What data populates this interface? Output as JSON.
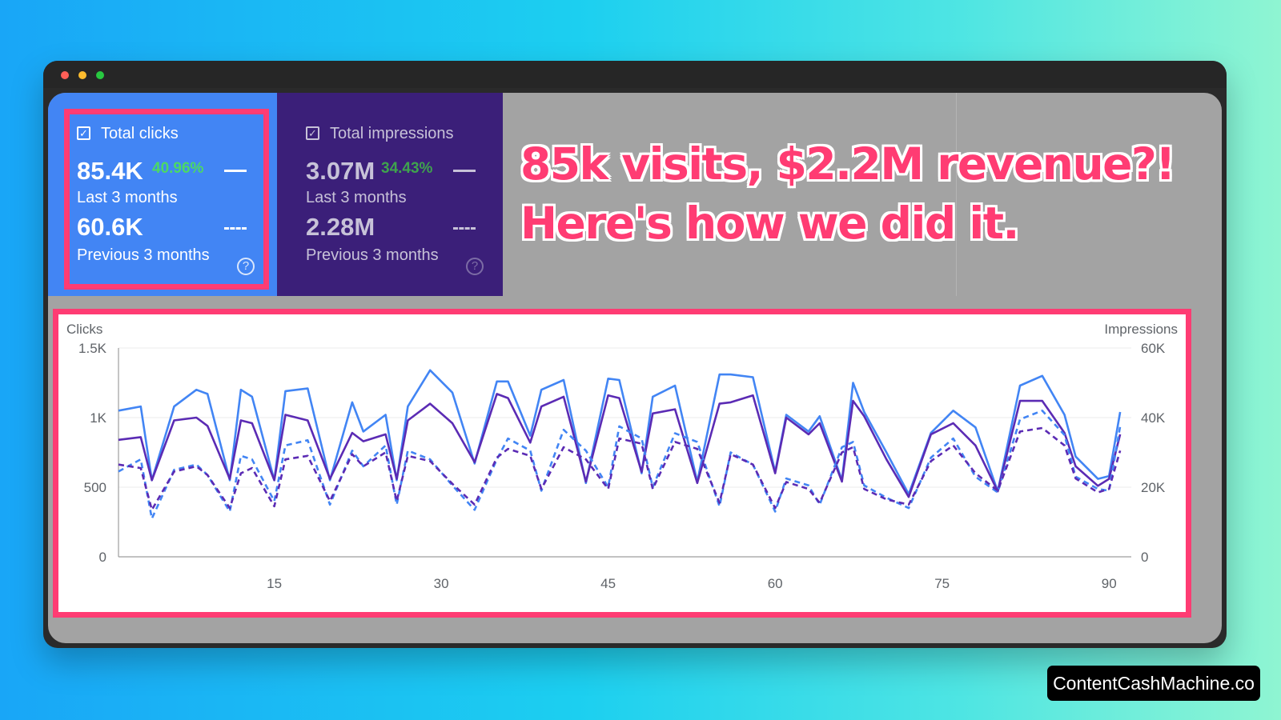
{
  "colors": {
    "clicks_card": "#4285f4",
    "impressions_card": "#3b1f79",
    "highlight": "#ff3c73",
    "positive_change": "#4cd964",
    "clicks_line": "#4285f4",
    "impressions_line": "#5b2bb4"
  },
  "cards": {
    "clicks": {
      "label": "Total clicks",
      "value_current": "85.4K",
      "change_pct": "40.96%",
      "period_current": "Last 3 months",
      "value_previous": "60.6K",
      "period_previous": "Previous 3 months",
      "help": "?"
    },
    "impressions": {
      "label": "Total impressions",
      "value_current": "3.07M",
      "change_pct": "34.43%",
      "period_current": "Last 3 months",
      "value_previous": "2.28M",
      "period_previous": "Previous 3 months",
      "help": "?"
    }
  },
  "headline": {
    "line1": "85k  visits, $2.2M revenue?!",
    "line2": "Here's how we did it."
  },
  "watermark": "ContentCashMachine.co",
  "chart_data": {
    "type": "line",
    "ylabel_left": "Clicks",
    "ylabel_right": "Impressions",
    "y_left_ticks": [
      "0",
      "500",
      "1K",
      "1.5K"
    ],
    "y_right_ticks": [
      "0",
      "20K",
      "40K",
      "60K"
    ],
    "ylim_left": [
      0,
      1500
    ],
    "ylim_right": [
      0,
      60000
    ],
    "x_ticks": [
      "15",
      "30",
      "45",
      "60",
      "75",
      "90"
    ],
    "xlim": [
      1,
      92
    ],
    "grid": true,
    "series": [
      {
        "axis": "left",
        "style": "solid",
        "color": "#4285f4",
        "x": [
          1,
          3,
          4,
          6,
          8,
          9,
          11,
          12,
          13,
          15,
          16,
          18,
          20,
          22,
          23,
          25,
          26,
          27,
          29,
          31,
          33,
          35,
          36,
          38,
          39,
          41,
          43,
          45,
          46,
          48,
          49,
          51,
          53,
          55,
          56,
          58,
          60,
          61,
          63,
          64,
          66,
          67,
          68,
          70,
          72,
          74,
          76,
          78,
          80,
          82,
          84,
          86,
          87,
          89,
          90,
          91
        ],
        "y": [
          1050,
          1080,
          550,
          1080,
          1200,
          1170,
          550,
          1200,
          1150,
          550,
          1190,
          1210,
          550,
          1110,
          900,
          1020,
          550,
          1080,
          1340,
          1180,
          670,
          1260,
          1260,
          870,
          1200,
          1270,
          530,
          1280,
          1270,
          600,
          1150,
          1230,
          540,
          1310,
          1310,
          1290,
          610,
          1020,
          900,
          1010,
          550,
          1250,
          1040,
          750,
          450,
          890,
          1050,
          930,
          470,
          1230,
          1300,
          1020,
          720,
          560,
          580,
          1040
        ]
      },
      {
        "axis": "left",
        "style": "solid",
        "color": "#5b2bb4",
        "x": [
          1,
          3,
          4,
          6,
          8,
          9,
          11,
          12,
          13,
          15,
          16,
          18,
          20,
          22,
          23,
          25,
          26,
          27,
          29,
          31,
          33,
          35,
          36,
          38,
          39,
          41,
          43,
          45,
          46,
          48,
          49,
          51,
          53,
          55,
          56,
          58,
          60,
          61,
          63,
          64,
          66,
          67,
          68,
          70,
          72,
          74,
          76,
          78,
          80,
          82,
          84,
          86,
          87,
          89,
          90,
          91
        ],
        "y": [
          840,
          860,
          550,
          980,
          1000,
          940,
          560,
          980,
          960,
          550,
          1020,
          980,
          560,
          890,
          830,
          880,
          560,
          980,
          1100,
          960,
          680,
          1170,
          1140,
          820,
          1080,
          1150,
          540,
          1160,
          1140,
          610,
          1030,
          1060,
          530,
          1100,
          1110,
          1160,
          600,
          1000,
          880,
          960,
          540,
          1120,
          1010,
          700,
          430,
          880,
          960,
          800,
          470,
          1120,
          1120,
          890,
          650,
          510,
          560,
          880
        ]
      },
      {
        "axis": "right",
        "style": "dashed",
        "color": "#4285f4",
        "x": [
          1,
          3,
          4,
          6,
          8,
          9,
          11,
          12,
          13,
          15,
          16,
          18,
          20,
          22,
          23,
          25,
          26,
          27,
          29,
          31,
          33,
          35,
          36,
          38,
          39,
          41,
          43,
          45,
          46,
          48,
          49,
          51,
          53,
          55,
          56,
          58,
          60,
          61,
          63,
          64,
          66,
          67,
          68,
          70,
          72,
          74,
          76,
          78,
          80,
          82,
          84,
          86,
          87,
          89,
          90,
          91
        ],
        "y": [
          24500,
          28000,
          11000,
          25000,
          26500,
          23500,
          13000,
          29000,
          28000,
          16000,
          32000,
          33500,
          15000,
          30500,
          26000,
          32000,
          15000,
          30500,
          28000,
          20500,
          13500,
          28000,
          34000,
          30500,
          19000,
          36500,
          30500,
          20000,
          37500,
          34000,
          20000,
          35500,
          33000,
          14500,
          30000,
          26500,
          13000,
          22500,
          20500,
          15000,
          31500,
          33000,
          20500,
          17000,
          14000,
          28500,
          34000,
          23000,
          18500,
          39500,
          42000,
          35000,
          23000,
          19500,
          19000,
          37500
        ]
      },
      {
        "axis": "right",
        "style": "dashed",
        "color": "#5b2bb4",
        "x": [
          1,
          3,
          4,
          6,
          8,
          9,
          11,
          12,
          13,
          15,
          16,
          18,
          20,
          22,
          23,
          25,
          26,
          27,
          29,
          31,
          33,
          35,
          36,
          38,
          39,
          41,
          43,
          45,
          46,
          48,
          49,
          51,
          53,
          55,
          56,
          58,
          60,
          61,
          63,
          64,
          66,
          67,
          68,
          70,
          72,
          74,
          76,
          78,
          80,
          82,
          84,
          86,
          87,
          89,
          90,
          91
        ],
        "y": [
          26500,
          25500,
          13500,
          24500,
          26000,
          23500,
          14000,
          24000,
          25500,
          14500,
          28000,
          29000,
          16000,
          29500,
          26000,
          30000,
          16000,
          29000,
          27500,
          21000,
          15000,
          28500,
          31000,
          29000,
          19500,
          31500,
          28000,
          19500,
          34000,
          32500,
          19500,
          33000,
          31000,
          15500,
          29500,
          26500,
          14000,
          21500,
          19500,
          15500,
          30000,
          31500,
          19500,
          16500,
          15000,
          27500,
          32000,
          24000,
          19000,
          36000,
          37000,
          32000,
          22500,
          18500,
          19500,
          30500
        ]
      }
    ]
  }
}
